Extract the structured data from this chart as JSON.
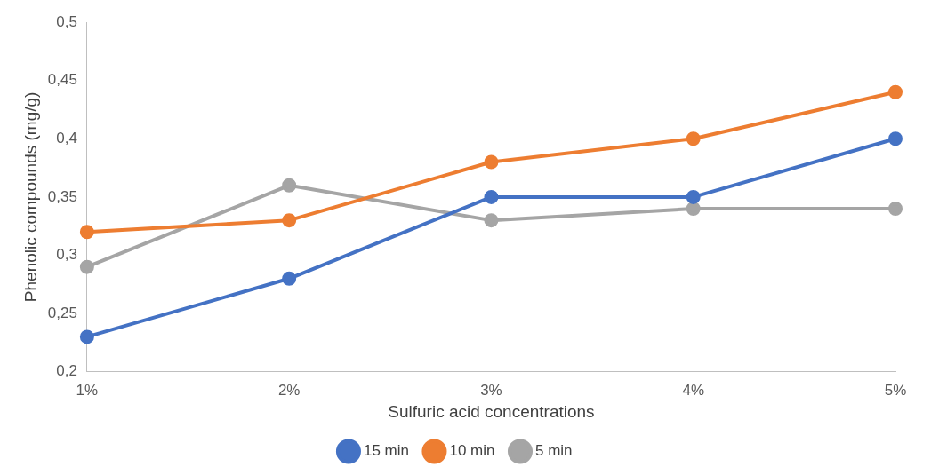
{
  "chart_data": {
    "type": "line",
    "xlabel": "Sulfuric acid concentrations",
    "ylabel": "Phenolic compounds (mg/g)",
    "categories": [
      "1%",
      "2%",
      "3%",
      "4%",
      "5%"
    ],
    "series": [
      {
        "name": "15 min",
        "color": "#4472c4",
        "values": [
          0.23,
          0.28,
          0.35,
          0.35,
          0.4
        ]
      },
      {
        "name": "10 min",
        "color": "#ed7d31",
        "values": [
          0.32,
          0.33,
          0.38,
          0.4,
          0.44
        ]
      },
      {
        "name": "5 min",
        "color": "#a5a5a5",
        "values": [
          0.29,
          0.36,
          0.33,
          0.34,
          0.34
        ]
      }
    ],
    "ylim": [
      0.2,
      0.5
    ],
    "yticks": [
      {
        "value": 0.2,
        "label": "0,2"
      },
      {
        "value": 0.25,
        "label": "0,25"
      },
      {
        "value": 0.3,
        "label": "0,3"
      },
      {
        "value": 0.35,
        "label": "0,35"
      },
      {
        "value": 0.4,
        "label": "0,4"
      },
      {
        "value": 0.45,
        "label": "0,45"
      },
      {
        "value": 0.5,
        "label": "0,5"
      }
    ],
    "grid": false,
    "legend": "bottom",
    "marker": "circle",
    "line_style": "solid"
  }
}
